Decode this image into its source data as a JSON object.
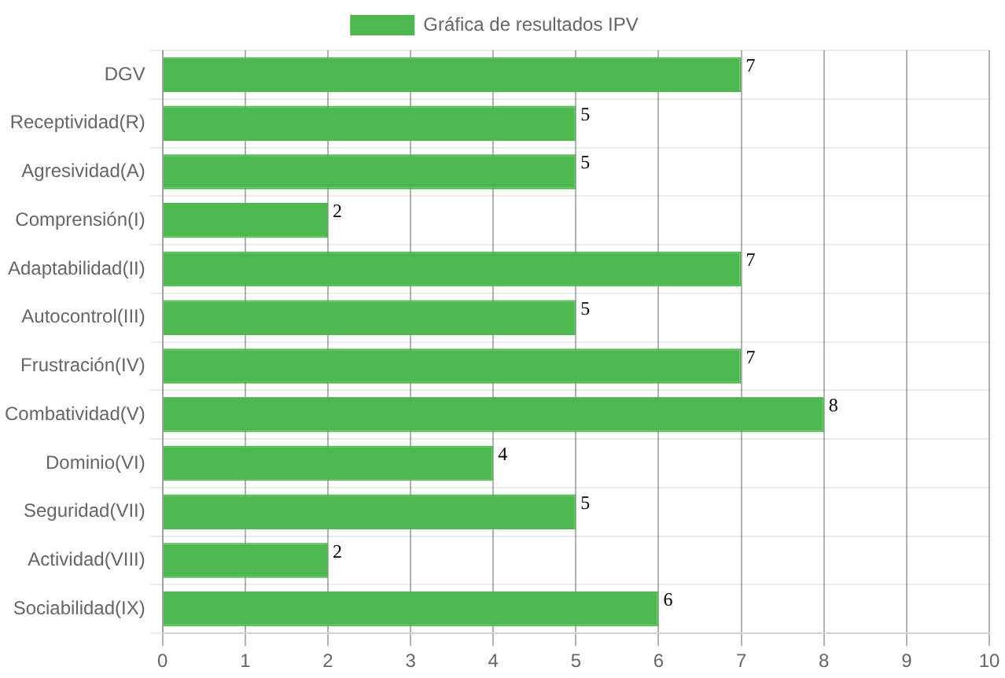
{
  "chart_data": {
    "type": "bar",
    "orientation": "horizontal",
    "categories": [
      "DGV",
      "Receptividad(R)",
      "Agresividad(A)",
      "Comprensión(I)",
      "Adaptabilidad(II)",
      "Autocontrol(III)",
      "Frustración(IV)",
      "Combatividad(V)",
      "Dominio(VI)",
      "Seguridad(VII)",
      "Actividad(VIII)",
      "Sociabilidad(IX)"
    ],
    "series": [
      {
        "name": "Gráfica de resultados IPV",
        "color": "#4db84d",
        "values": [
          7,
          5,
          5,
          2,
          7,
          5,
          7,
          8,
          4,
          5,
          2,
          6
        ]
      }
    ],
    "xlim": [
      0,
      10
    ],
    "xticks": [
      0,
      1,
      2,
      3,
      4,
      5,
      6,
      7,
      8,
      9,
      10
    ],
    "grid": true,
    "legend": "top",
    "data_labels": true
  }
}
